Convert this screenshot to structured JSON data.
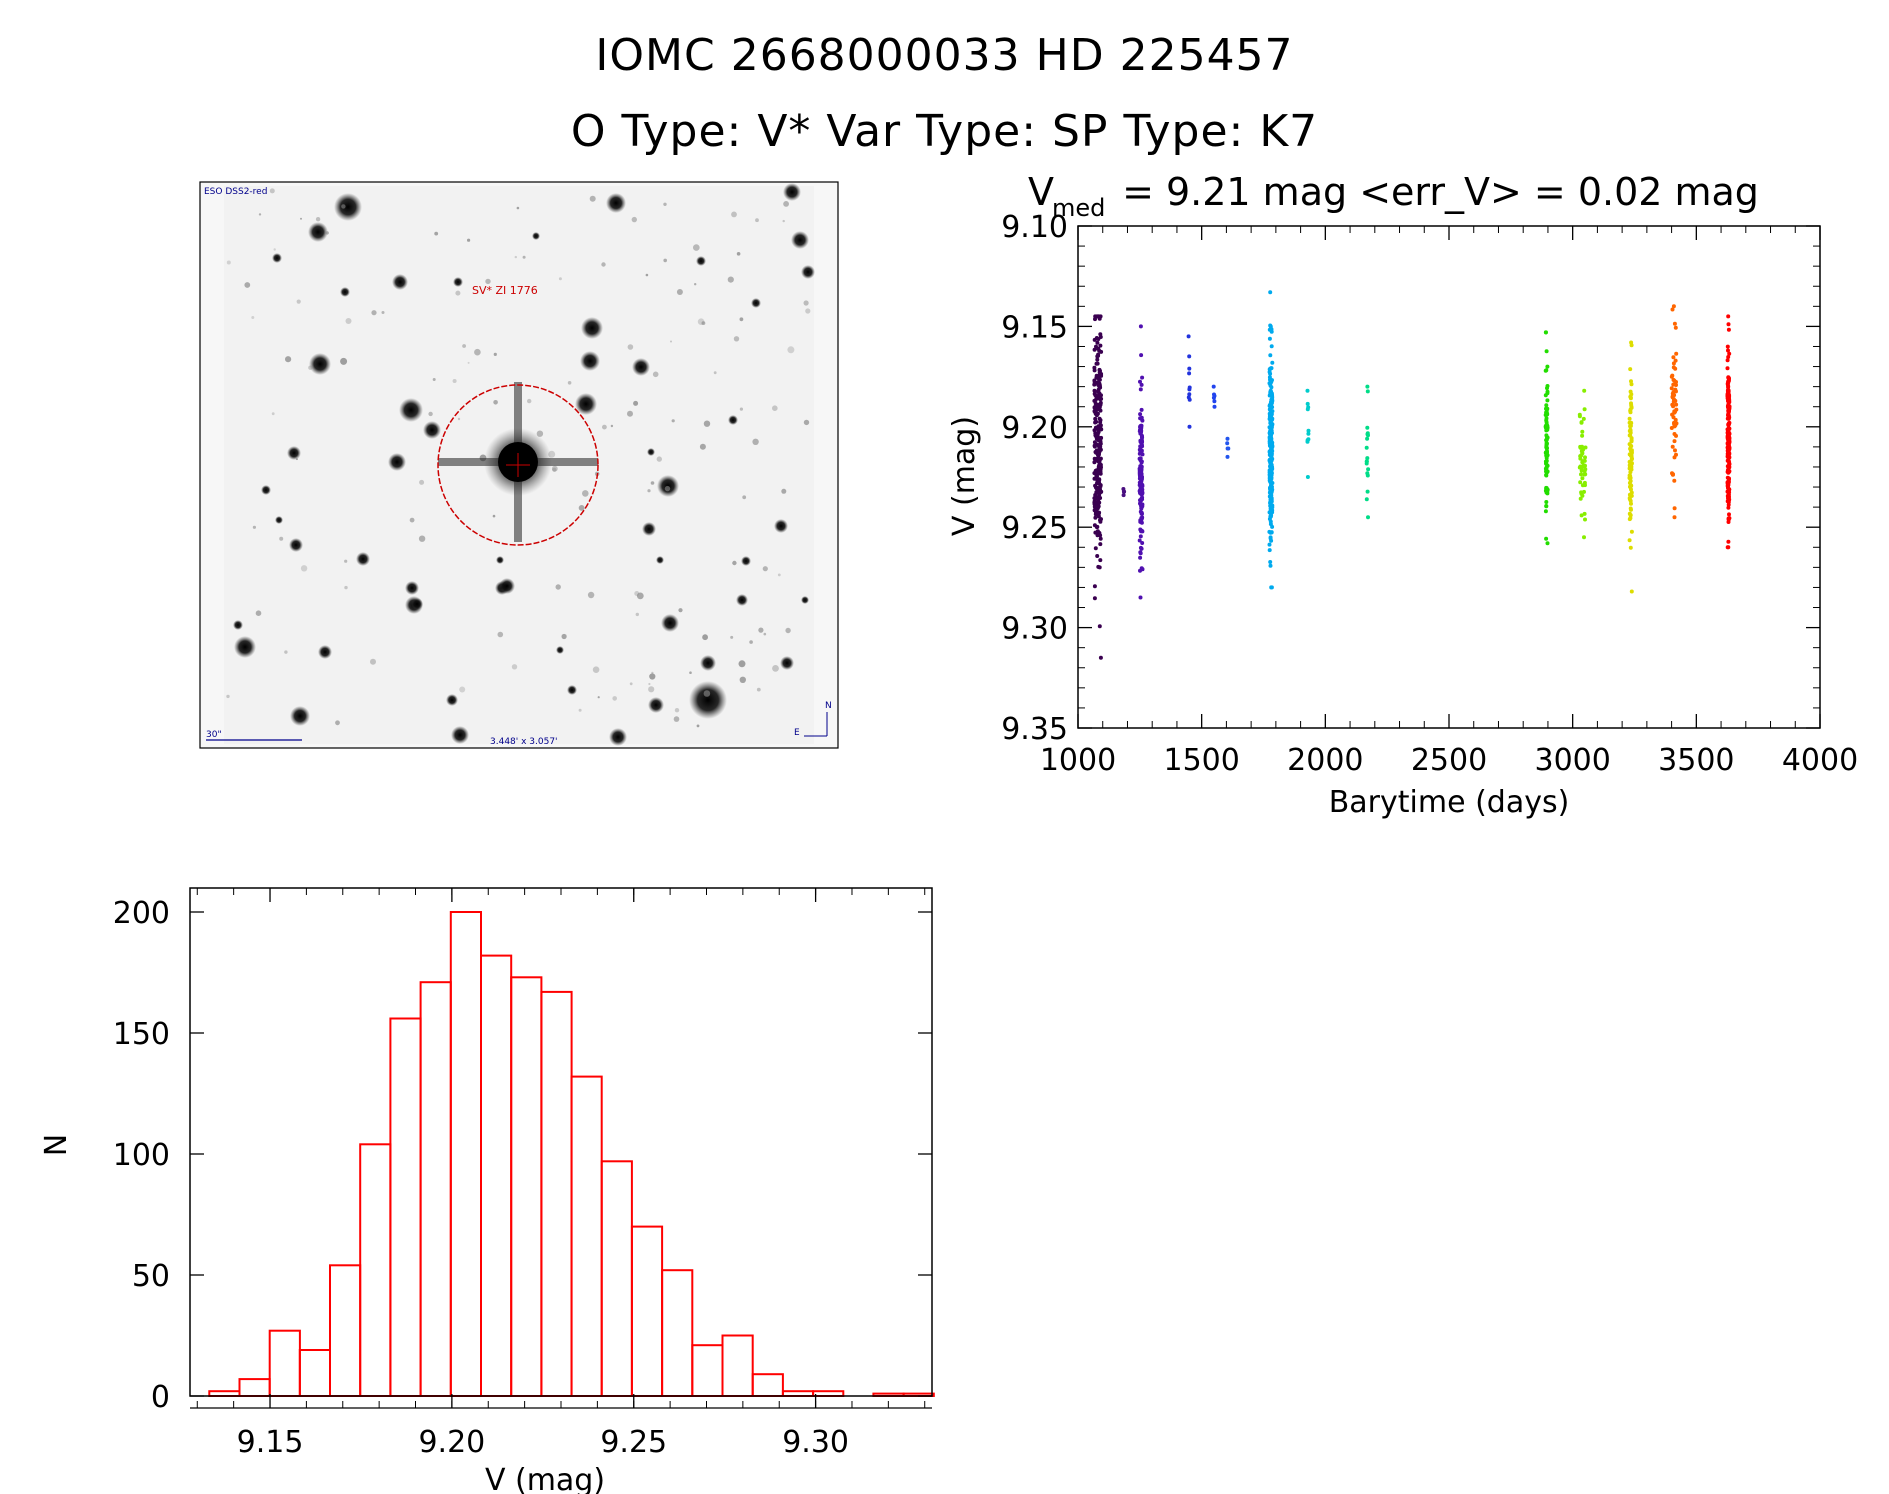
{
  "header": {
    "line1": "IOMC 2668000033    HD 225457",
    "line2": "O Type: V*  Var Type:    SP Type: K7"
  },
  "finding_chart": {
    "top_left_label": "ESO DSS2-red",
    "target_label": "SV* ZI 1776",
    "scale_label": "30\"",
    "fov_label": "3.448' x 3.057'",
    "north": "N",
    "east": "E"
  },
  "colors": {
    "axis": "#000000",
    "histogram": "#ff0000",
    "circle": "#cc0000",
    "label_blue": "#00008b"
  },
  "chart_data": [
    {
      "type": "scatter",
      "title_main": "V",
      "title_sub": "med",
      "title_rest": " = 9.21 mag <err_V> = 0.02 mag",
      "xlabel": "Barytime (days)",
      "ylabel": "V (mag)",
      "xlim": [
        1000,
        4000
      ],
      "ylim": [
        9.1,
        9.35
      ],
      "y_inverted": true,
      "xticks": [
        1000,
        1500,
        2000,
        2500,
        3000,
        3500,
        4000
      ],
      "yticks": [
        9.1,
        9.15,
        9.2,
        9.25,
        9.3,
        9.35
      ],
      "ytick_labels": [
        "9.10",
        "9.15",
        "9.20",
        "9.25",
        "9.30",
        "9.35"
      ],
      "groups": [
        {
          "x": 1080,
          "xspread": 14,
          "ymin": 9.145,
          "ymax": 9.315,
          "ycenter": 9.21,
          "n": 260,
          "color": "#3a0050"
        },
        {
          "x": 1185,
          "xspread": 2,
          "ymin": 9.231,
          "ymax": 9.234,
          "ycenter": 9.232,
          "n": 4,
          "color": "#4a1080"
        },
        {
          "x": 1255,
          "xspread": 6,
          "ymin": 9.15,
          "ymax": 9.285,
          "ycenter": 9.22,
          "n": 150,
          "color": "#5010b0"
        },
        {
          "x": 1450,
          "xspread": 3,
          "ymin": 9.155,
          "ymax": 9.2,
          "ycenter": 9.18,
          "n": 10,
          "color": "#2233dd"
        },
        {
          "x": 1550,
          "xspread": 3,
          "ymin": 9.18,
          "ymax": 9.19,
          "ycenter": 9.185,
          "n": 6,
          "color": "#2244ee"
        },
        {
          "x": 1605,
          "xspread": 3,
          "ymin": 9.206,
          "ymax": 9.215,
          "ycenter": 9.21,
          "n": 5,
          "color": "#2255ee"
        },
        {
          "x": 1780,
          "xspread": 6,
          "ymin": 9.133,
          "ymax": 9.28,
          "ycenter": 9.21,
          "n": 260,
          "color": "#00aaee"
        },
        {
          "x": 1930,
          "xspread": 2,
          "ymin": 9.182,
          "ymax": 9.225,
          "ycenter": 9.2,
          "n": 10,
          "color": "#00cccc"
        },
        {
          "x": 2170,
          "xspread": 3,
          "ymin": 9.18,
          "ymax": 9.245,
          "ycenter": 9.21,
          "n": 18,
          "color": "#00dd88"
        },
        {
          "x": 2895,
          "xspread": 4,
          "ymin": 9.153,
          "ymax": 9.258,
          "ycenter": 9.205,
          "n": 90,
          "color": "#22dd00"
        },
        {
          "x": 3040,
          "xspread": 12,
          "ymin": 9.182,
          "ymax": 9.255,
          "ycenter": 9.22,
          "n": 50,
          "color": "#88ee00"
        },
        {
          "x": 3235,
          "xspread": 5,
          "ymin": 9.158,
          "ymax": 9.282,
          "ycenter": 9.215,
          "n": 90,
          "color": "#dddd00"
        },
        {
          "x": 3410,
          "xspread": 10,
          "ymin": 9.14,
          "ymax": 9.245,
          "ycenter": 9.19,
          "n": 60,
          "color": "#ff6600"
        },
        {
          "x": 3630,
          "xspread": 4,
          "ymin": 9.145,
          "ymax": 9.26,
          "ycenter": 9.205,
          "n": 200,
          "color": "#ff0000"
        }
      ]
    },
    {
      "type": "bar",
      "histogram": true,
      "xlabel": "V (mag)",
      "ylabel": "N",
      "xlim": [
        9.128,
        9.332
      ],
      "ylim": [
        0,
        200
      ],
      "xticks": [
        9.15,
        9.2,
        9.25,
        9.3
      ],
      "xtick_labels": [
        "9.15",
        "9.20",
        "9.25",
        "9.30"
      ],
      "yticks": [
        0,
        50,
        100,
        150,
        200
      ],
      "ytick_labels": [
        "0",
        "50",
        "100",
        "150",
        "200"
      ],
      "bin_start": 9.1333,
      "bin_width": 0.0083,
      "values": [
        2,
        7,
        27,
        19,
        54,
        104,
        156,
        171,
        200,
        182,
        173,
        167,
        132,
        97,
        70,
        52,
        21,
        25,
        9,
        2,
        2,
        0,
        1,
        1
      ]
    }
  ]
}
